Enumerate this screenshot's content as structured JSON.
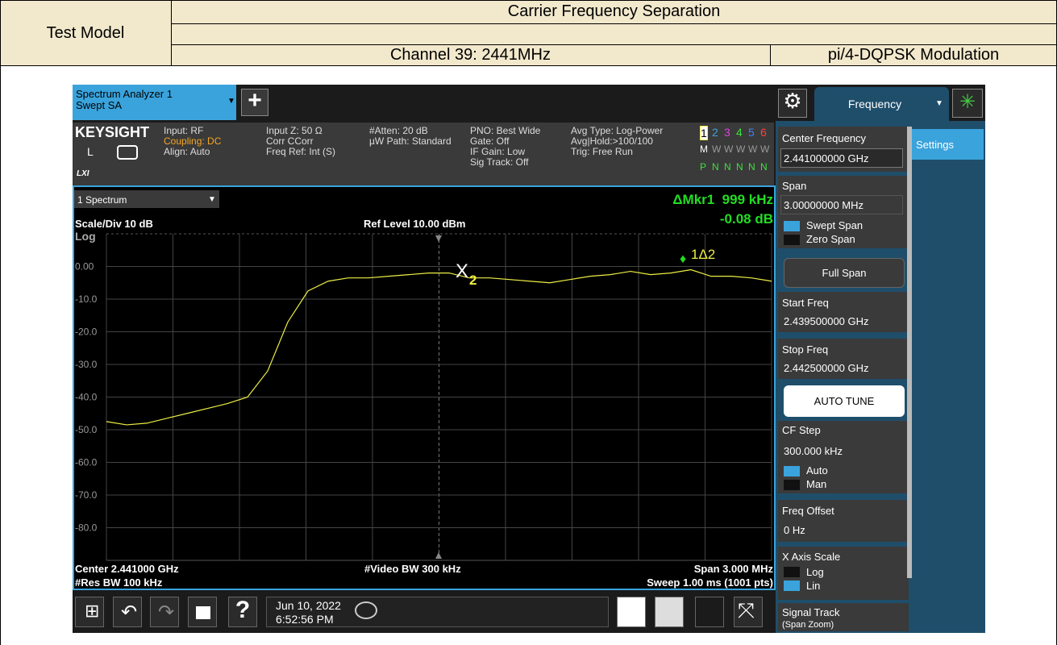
{
  "header": {
    "title": "Carrier Frequency Separation",
    "test_model": "Test Model",
    "channel": "Channel 39: 2441MHz",
    "modulation": "pi/4-DQPSK Modulation"
  },
  "analyzer": {
    "tab": {
      "name": "Spectrum Analyzer 1",
      "mode": "Swept SA"
    },
    "add": "+",
    "brand": "KEYSIGHT",
    "brand_sub": "L",
    "lxi": "LXI",
    "settings": [
      [
        "Input: RF",
        "Coupling: DC",
        "Align: Auto"
      ],
      [
        "Input Z: 50 Ω",
        "Corr CCorr",
        "Freq Ref: Int (S)"
      ],
      [
        "#Atten: 20 dB",
        "µW Path: Standard"
      ],
      [
        "PNO: Best Wide",
        "Gate: Off",
        "IF Gain: Low",
        "Sig Track: Off"
      ],
      [
        "Avg Type: Log-Power",
        "Avg|Hold:>100/100",
        "Trig: Free Run"
      ]
    ],
    "traces": {
      "numbers": [
        "1",
        "2",
        "3",
        "4",
        "5",
        "6"
      ],
      "types": [
        "M",
        "W",
        "W",
        "W",
        "W",
        "W"
      ],
      "detectors": [
        "P",
        "N",
        "N",
        "N",
        "N",
        "N"
      ]
    },
    "window": "1 Spectrum",
    "marker_readout": {
      "label": "ΔMkr1",
      "freq": "999 kHz",
      "amp": "-0.08 dB"
    },
    "scale": "Scale/Div 10 dB",
    "ref_level": "Ref Level 10.00 dBm",
    "scale_type": "Log",
    "markers": {
      "x": "X",
      "x_num": "2",
      "delta": "1Δ2"
    },
    "footer": {
      "center": "Center 2.441000 GHz",
      "res_bw": "#Res BW 100 kHz",
      "video_bw": "#Video BW 300 kHz",
      "span": "Span 3.000 MHz",
      "sweep": "Sweep 1.00 ms (1001 pts)"
    },
    "taskbar": {
      "help": "?",
      "date": "Jun 10, 2022",
      "time": "6:52:56 PM"
    },
    "menu": {
      "title": "Frequency",
      "tab": "Settings",
      "keys": [
        {
          "label": "Center Frequency",
          "value": "2.441000000 GHz"
        },
        {
          "label": "Span",
          "value": "3.00000000 MHz",
          "options": [
            "Swept Span",
            "Zero Span"
          ]
        },
        {
          "button": "Full Span"
        },
        {
          "label": "Start Freq",
          "value": "2.439500000 GHz"
        },
        {
          "label": "Stop Freq",
          "value": "2.442500000 GHz"
        },
        {
          "button": "AUTO TUNE"
        },
        {
          "label": "CF Step",
          "value": "300.000 kHz",
          "options": [
            "Auto",
            "Man"
          ]
        },
        {
          "label": "Freq Offset",
          "value": "0 Hz"
        },
        {
          "label": "X Axis Scale",
          "options": [
            "Log",
            "Lin"
          ]
        },
        {
          "label": "Signal Track",
          "value": "(Span Zoom)"
        }
      ]
    }
  },
  "chart_data": {
    "type": "line",
    "ylim": [
      -90,
      10
    ],
    "yticks": [
      {
        "value": 0,
        "label": "0.00"
      },
      {
        "value": -10,
        "label": "-10.0"
      },
      {
        "value": -20,
        "label": "-20.0"
      },
      {
        "value": -30,
        "label": "-30.0"
      },
      {
        "value": -40,
        "label": "-40.0"
      },
      {
        "value": -50,
        "label": "-50.0"
      },
      {
        "value": -60,
        "label": "-60.0"
      },
      {
        "value": -70,
        "label": "-70.0"
      },
      {
        "value": -80,
        "label": "-80.0"
      }
    ],
    "grid": true,
    "series": [
      {
        "color": "#eeee44",
        "values": [
          -47.5,
          -48.5,
          -48,
          -46.5,
          -45,
          -43.5,
          -42,
          -40,
          -32,
          -17,
          -7.5,
          -4.5,
          -3.5,
          -3.5,
          -3,
          -2.5,
          -2,
          -2,
          -3.5,
          -3.5,
          -4,
          -4.5,
          -5,
          -4,
          -3,
          -2.5,
          -1.5,
          -2.5,
          -2,
          -1,
          -3,
          -3,
          -3.5,
          -4.5
        ]
      }
    ]
  }
}
